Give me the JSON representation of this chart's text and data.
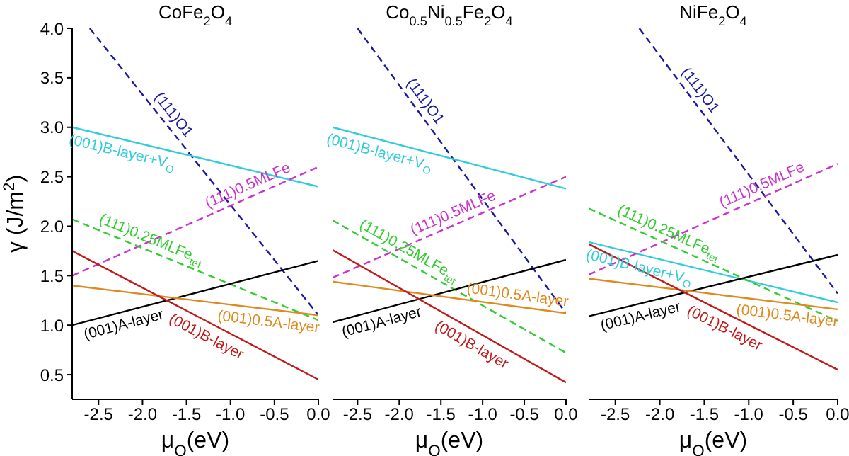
{
  "chart_data": [
    {
      "type": "line",
      "title": "CoFe$_{2}$O$_{4}$",
      "xlabel": "μ$_{O}$(eV)",
      "ylabel": "γ (J/m$^{2}$)",
      "xlim": [
        -2.8,
        0
      ],
      "ylim": [
        0.25,
        4.0
      ],
      "xticks": [
        -2.5,
        {
          "value": -2,
          "label": "-2.0"
        },
        -1.5,
        {
          "value": -1,
          "label": "-1.0"
        },
        -0.5,
        {
          "value": 0,
          "label": "0.0"
        }
      ],
      "yticks": [
        0.5,
        {
          "value": 1,
          "label": "1.0"
        },
        1.5,
        {
          "value": 2,
          "label": "2.0"
        },
        2.5,
        {
          "value": 3,
          "label": "3.0"
        },
        3.5,
        {
          "value": 4,
          "label": "4.0"
        }
      ],
      "marker": "none",
      "series": [
        {
          "name": "(111)O1",
          "color": "#1a1a9e",
          "line_style": "dashed",
          "x": [
            -2.6,
            0
          ],
          "values": [
            4.0,
            1.1
          ]
        },
        {
          "name": "(001)B-layer+V$_{O}$",
          "color": "#33ccdd",
          "line_style": "solid",
          "x": [
            -2.8,
            0
          ],
          "values": [
            3.0,
            2.4
          ]
        },
        {
          "name": "(111)0.5MLFe",
          "color": "#cc33cc",
          "line_style": "dashed",
          "x": [
            -2.8,
            0
          ],
          "values": [
            1.5,
            2.6
          ]
        },
        {
          "name": "(111)0.25MLFe$_{tet}$",
          "color": "#33cc33",
          "line_style": "dashed",
          "x": [
            -2.8,
            0
          ],
          "values": [
            2.07,
            1.05
          ]
        },
        {
          "name": "(001)A-layer",
          "color": "#000000",
          "line_style": "solid",
          "x": [
            -2.8,
            0
          ],
          "values": [
            1.0,
            1.65
          ]
        },
        {
          "name": "(001)0.5A-layer",
          "color": "#e08a1e",
          "line_style": "solid",
          "x": [
            -2.8,
            0
          ],
          "values": [
            1.4,
            1.1
          ]
        },
        {
          "name": "(001)B-layer",
          "color": "#c01a1a",
          "line_style": "solid",
          "x": [
            -2.8,
            0
          ],
          "values": [
            1.75,
            0.45
          ]
        }
      ]
    },
    {
      "type": "line",
      "title": "Co$_{0.5}$Ni$_{0.5}$Fe$_{2}$O$_{4}$",
      "xlabel": "μ$_{O}$(eV)",
      "xlim": [
        -2.8,
        0
      ],
      "ylim": [
        0.25,
        4.0
      ],
      "tick_labels": "x",
      "xticks": [
        -2.5,
        {
          "value": -2,
          "label": "-2.0"
        },
        -1.5,
        {
          "value": -1,
          "label": "-1.0"
        },
        -0.5,
        {
          "value": 0,
          "label": "0.0"
        }
      ],
      "yticks": [
        0.5,
        1,
        1.5,
        2,
        2.5,
        3,
        3.5,
        4
      ],
      "marker": "none",
      "series": [
        {
          "name": "(111)O1",
          "color": "#1a1a9e",
          "line_style": "dashed",
          "x": [
            -2.5,
            0
          ],
          "values": [
            4.0,
            1.12
          ]
        },
        {
          "name": "(001)B-layer+V$_{O}$",
          "color": "#33ccdd",
          "line_style": "solid",
          "x": [
            -2.8,
            0
          ],
          "values": [
            3.0,
            2.38
          ]
        },
        {
          "name": "(111)0.5MLFe",
          "color": "#cc33cc",
          "line_style": "dashed",
          "x": [
            -2.8,
            0
          ],
          "values": [
            1.48,
            2.5
          ]
        },
        {
          "name": "(111)0.25MLFe$_{tet}$",
          "color": "#33cc33",
          "line_style": "dashed",
          "x": [
            -2.8,
            0
          ],
          "values": [
            2.06,
            0.72
          ]
        },
        {
          "name": "(001)A-layer",
          "color": "#000000",
          "line_style": "solid",
          "x": [
            -2.8,
            0
          ],
          "values": [
            1.03,
            1.66
          ]
        },
        {
          "name": "(001)0.5A-layer",
          "color": "#e08a1e",
          "line_style": "solid",
          "x": [
            -2.8,
            0
          ],
          "values": [
            1.44,
            1.12
          ]
        },
        {
          "name": "(001)B-layer",
          "color": "#c01a1a",
          "line_style": "solid",
          "x": [
            -2.8,
            0
          ],
          "values": [
            1.76,
            0.42
          ]
        }
      ]
    },
    {
      "type": "line",
      "title": "NiFe$_{2}$O$_{4}$",
      "xlabel": "μ$_{O}$(eV)",
      "xlim": [
        -2.8,
        0
      ],
      "ylim": [
        0.25,
        4.0
      ],
      "tick_labels": "x",
      "xticks": [
        -2.5,
        {
          "value": -2,
          "label": "-2.0"
        },
        -1.5,
        {
          "value": -1,
          "label": "-1.0"
        },
        -0.5,
        {
          "value": 0,
          "label": "0.0"
        }
      ],
      "yticks": [
        0.5,
        1,
        1.5,
        2,
        2.5,
        3,
        3.5,
        4
      ],
      "marker": "none",
      "series": [
        {
          "name": "(111)O1",
          "color": "#1a1a9e",
          "line_style": "dashed",
          "x": [
            -2.23,
            0
          ],
          "values": [
            4.0,
            1.32
          ]
        },
        {
          "name": "(001)B-layer+V$_{O}$",
          "color": "#33ccdd",
          "line_style": "solid",
          "x": [
            -2.8,
            0
          ],
          "values": [
            1.84,
            1.23
          ]
        },
        {
          "name": "(111)0.5MLFe",
          "color": "#cc33cc",
          "line_style": "dashed",
          "x": [
            -2.8,
            0
          ],
          "values": [
            1.51,
            2.63
          ]
        },
        {
          "name": "(111)0.25MLFe$_{tet}$",
          "color": "#33cc33",
          "line_style": "dashed",
          "x": [
            -2.8,
            0
          ],
          "values": [
            2.18,
            1.04
          ]
        },
        {
          "name": "(001)A-layer",
          "color": "#000000",
          "line_style": "solid",
          "x": [
            -2.8,
            0
          ],
          "values": [
            1.09,
            1.71
          ]
        },
        {
          "name": "(001)0.5A-layer",
          "color": "#e08a1e",
          "line_style": "solid",
          "x": [
            -2.8,
            0
          ],
          "values": [
            1.47,
            1.16
          ]
        },
        {
          "name": "(001)B-layer",
          "color": "#c01a1a",
          "line_style": "solid",
          "x": [
            -2.8,
            0
          ],
          "values": [
            1.82,
            0.55
          ]
        }
      ]
    }
  ]
}
